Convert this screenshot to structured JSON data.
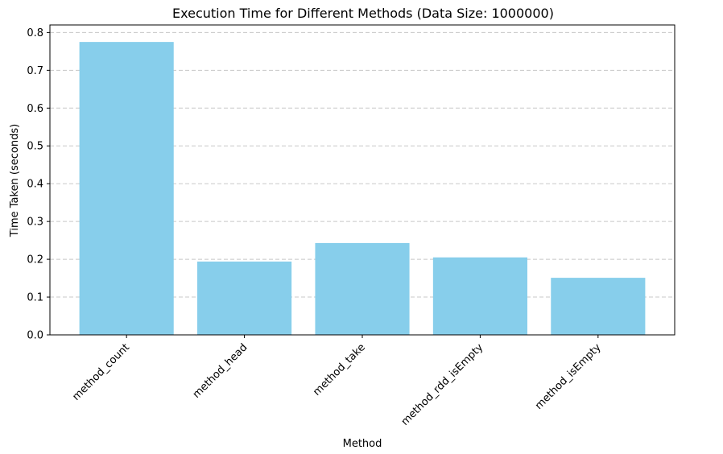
{
  "chart_data": {
    "type": "bar",
    "title": "Execution Time for Different Methods (Data Size: 1000000)",
    "xlabel": "Method",
    "ylabel": "Time Taken (seconds)",
    "categories": [
      "method_count",
      "method_head",
      "method_take",
      "method_rdd_isEmpty",
      "method_isEmpty"
    ],
    "values": [
      0.775,
      0.194,
      0.243,
      0.205,
      0.151
    ],
    "ylim": [
      0,
      0.82
    ],
    "yticks": [
      "0.0",
      "0.1",
      "0.2",
      "0.3",
      "0.4",
      "0.5",
      "0.6",
      "0.7",
      "0.8"
    ],
    "bar_color": "#87CEEB",
    "grid": "y-dashed"
  }
}
